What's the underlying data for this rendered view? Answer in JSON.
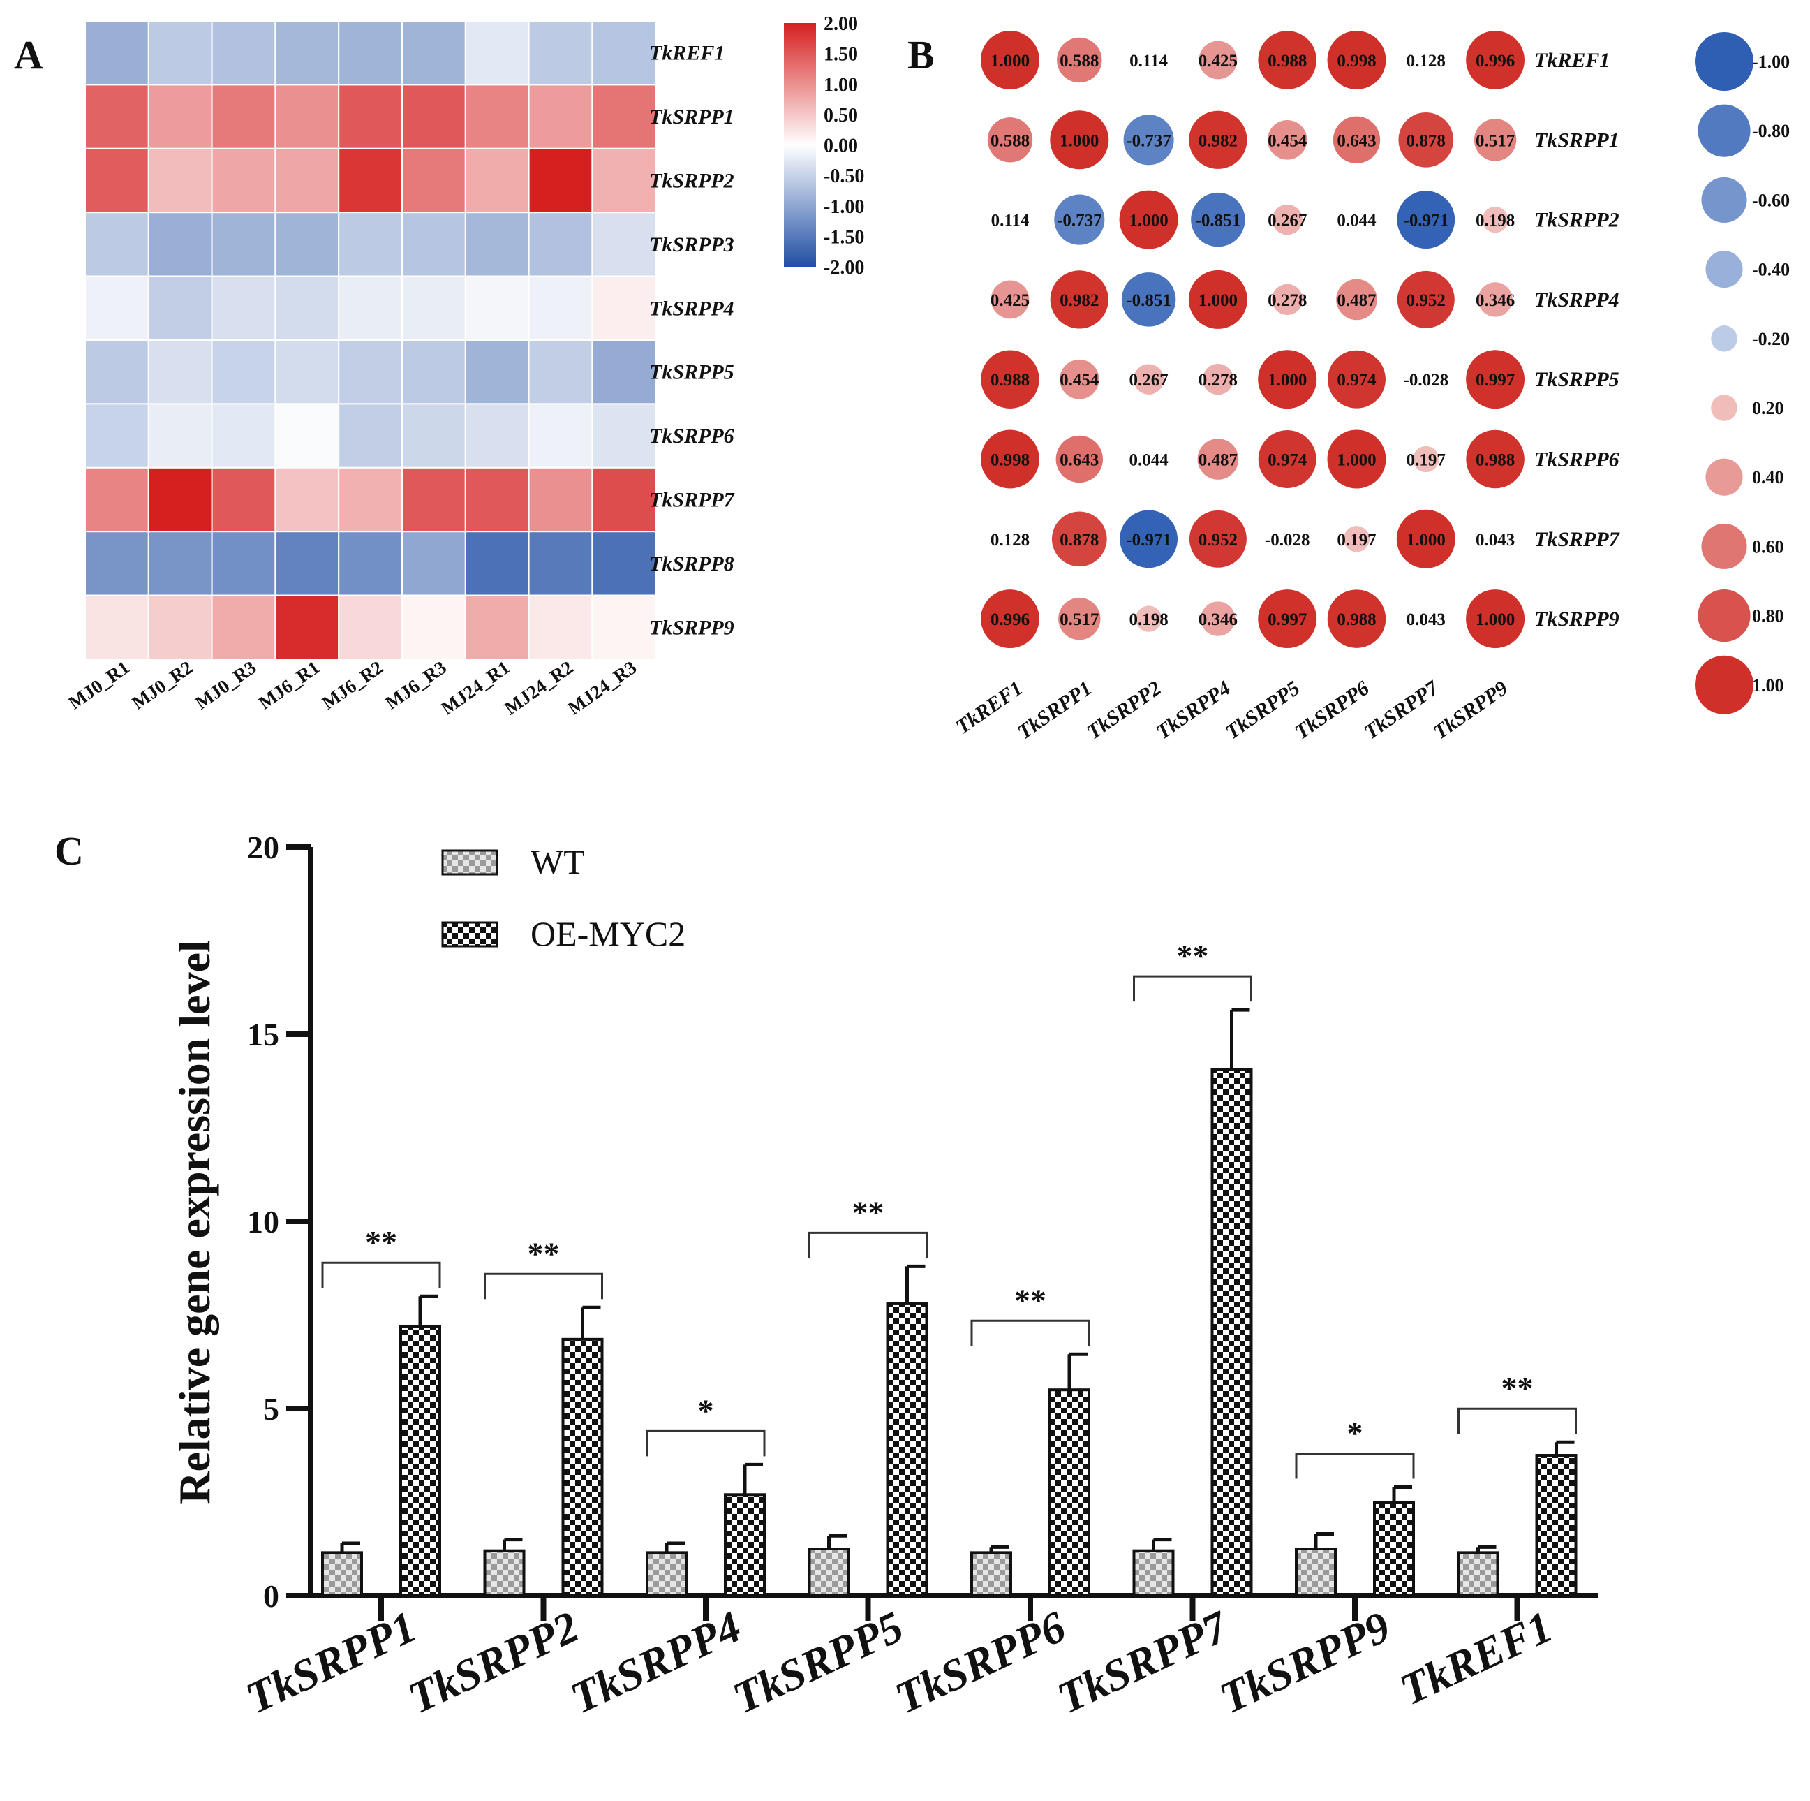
{
  "panel_labels": {
    "a": "A",
    "b": "B",
    "c": "C"
  },
  "chart_data": [
    {
      "type": "heatmap",
      "panel": "A",
      "title": "",
      "rows": [
        "TkREF1",
        "TkSRPP1",
        "TkSRPP2",
        "TkSRPP3",
        "TkSRPP4",
        "TkSRPP5",
        "TkSRPP6",
        "TkSRPP7",
        "TkSRPP8",
        "TkSRPP9"
      ],
      "columns": [
        "MJ0_R1",
        "MJ0_R2",
        "MJ0_R3",
        "MJ6_R1",
        "MJ6_R2",
        "MJ6_R3",
        "MJ24_R1",
        "MJ24_R2",
        "MJ24_R3"
      ],
      "values": [
        [
          -0.9,
          -0.6,
          -0.7,
          -0.8,
          -0.85,
          -0.85,
          -0.25,
          -0.6,
          -0.65
        ],
        [
          1.4,
          0.9,
          1.2,
          1.0,
          1.5,
          1.5,
          1.1,
          0.9,
          1.25
        ],
        [
          1.45,
          0.6,
          0.8,
          0.8,
          1.8,
          1.2,
          0.75,
          2.0,
          0.7
        ],
        [
          -0.6,
          -0.9,
          -0.85,
          -0.85,
          -0.6,
          -0.65,
          -0.8,
          -0.7,
          -0.35
        ],
        [
          -0.15,
          -0.55,
          -0.35,
          -0.4,
          -0.2,
          -0.2,
          -0.1,
          -0.15,
          0.15
        ],
        [
          -0.6,
          -0.35,
          -0.5,
          -0.4,
          -0.55,
          -0.6,
          -0.85,
          -0.55,
          -0.95
        ],
        [
          -0.5,
          -0.2,
          -0.25,
          -0.05,
          -0.55,
          -0.45,
          -0.35,
          -0.15,
          -0.3
        ],
        [
          1.1,
          2.0,
          1.5,
          0.55,
          0.7,
          1.5,
          1.5,
          1.0,
          1.6
        ],
        [
          -1.2,
          -1.2,
          -1.25,
          -1.4,
          -1.25,
          -1.0,
          -1.6,
          -1.5,
          -1.6
        ],
        [
          0.25,
          0.45,
          0.75,
          1.9,
          0.35,
          0.1,
          0.75,
          0.2,
          0.1
        ]
      ],
      "color_scale": {
        "min": -2.0,
        "max": 2.0,
        "ticks": [
          "2.00",
          "1.50",
          "1.00",
          "0.50",
          "0.00",
          "-0.50",
          "-1.00",
          "-1.50",
          "-2.00"
        ],
        "low_color": "#1f4ea3",
        "mid_color": "#ffffff",
        "high_color": "#d62020"
      }
    },
    {
      "type": "heatmap",
      "panel": "B",
      "title": "",
      "rows": [
        "TkREF1",
        "TkSRPP1",
        "TkSRPP2",
        "TkSRPP4",
        "TkSRPP5",
        "TkSRPP6",
        "TkSRPP7",
        "TkSRPP9"
      ],
      "columns": [
        "TkREF1",
        "TkSRPP1",
        "TkSRPP2",
        "TkSRPP4",
        "TkSRPP5",
        "TkSRPP6",
        "TkSRPP7",
        "TkSRPP9"
      ],
      "matrix": [
        [
          1.0,
          0.588,
          0.114,
          0.425,
          0.988,
          0.998,
          0.128,
          0.996
        ],
        [
          0.588,
          1.0,
          -0.737,
          0.982,
          0.454,
          0.643,
          0.878,
          0.517
        ],
        [
          0.114,
          -0.737,
          1.0,
          -0.851,
          0.267,
          0.044,
          -0.971,
          0.198
        ],
        [
          0.425,
          0.982,
          -0.851,
          1.0,
          0.278,
          0.487,
          0.952,
          0.346
        ],
        [
          0.988,
          0.454,
          0.267,
          0.278,
          1.0,
          0.974,
          -0.028,
          0.997
        ],
        [
          0.998,
          0.643,
          0.044,
          0.487,
          0.974,
          1.0,
          0.197,
          0.988
        ],
        [
          0.128,
          0.878,
          -0.971,
          0.952,
          -0.028,
          0.197,
          1.0,
          0.043
        ],
        [
          0.996,
          0.517,
          0.198,
          0.346,
          0.997,
          0.988,
          0.043,
          1.0
        ]
      ],
      "labels": [
        [
          "1.000",
          "0.588",
          "0.114",
          "0.425",
          "0.988",
          "0.998",
          "0.128",
          "0.996"
        ],
        [
          "0.588",
          "1.000",
          "-0.737",
          "0.982",
          "0.454",
          "0.643",
          "0.878",
          "0.517"
        ],
        [
          "0.114",
          "-0.737",
          "1.000",
          "-0.851",
          "0.267",
          "0.044",
          "-0.971",
          "0.198"
        ],
        [
          "0.425",
          "0.982",
          "-0.851",
          "1.000",
          "0.278",
          "0.487",
          "0.952",
          "0.346"
        ],
        [
          "0.988",
          "0.454",
          "0.267",
          "0.278",
          "1.000",
          "0.974",
          "-0.028",
          "0.997"
        ],
        [
          "0.998",
          "0.643",
          "0.044",
          "0.487",
          "0.974",
          "1.000",
          "0.197",
          "0.988"
        ],
        [
          "0.128",
          "0.878",
          "-0.971",
          "0.952",
          "-0.028",
          "0.197",
          "1.000",
          "0.043"
        ],
        [
          "0.996",
          "0.517",
          "0.198",
          "0.346",
          "0.997",
          "0.988",
          "0.043",
          "1.000"
        ]
      ],
      "size_legend": {
        "labels": [
          "-1.00",
          "-0.80",
          "-0.60",
          "-0.40",
          "-0.20",
          "0.20",
          "0.40",
          "0.60",
          "0.80",
          "1.00"
        ],
        "values": [
          -1.0,
          -0.8,
          -0.6,
          -0.4,
          -0.2,
          0.2,
          0.4,
          0.6,
          0.8,
          1.0
        ]
      },
      "neg_color": "#2f5fb3",
      "pos_color": "#d0302a"
    },
    {
      "type": "bar",
      "panel": "C",
      "title": "",
      "xlabel": "",
      "ylabel": "Relative gene expression level",
      "ylim": [
        0,
        20
      ],
      "yticks": [
        0,
        5,
        10,
        15,
        20
      ],
      "categories": [
        "TkSRPP1",
        "TkSRPP2",
        "TkSRPP4",
        "TkSRPP5",
        "TkSRPP6",
        "TkSRPP7",
        "TkSRPP9",
        "TkREF1"
      ],
      "series": [
        {
          "name": "WT",
          "values": [
            1.15,
            1.2,
            1.15,
            1.25,
            1.15,
            1.2,
            1.25,
            1.15
          ],
          "errors": [
            0.25,
            0.3,
            0.25,
            0.35,
            0.15,
            0.3,
            0.4,
            0.15
          ]
        },
        {
          "name": "OE-MYC2",
          "values": [
            7.2,
            6.85,
            2.7,
            7.8,
            5.5,
            14.05,
            2.5,
            3.75
          ],
          "errors": [
            0.8,
            0.85,
            0.8,
            1.0,
            0.95,
            1.6,
            0.4,
            0.35
          ]
        }
      ],
      "significance": [
        "**",
        "**",
        "*",
        "**",
        "**",
        "**",
        "*",
        "**"
      ],
      "legend": [
        "WT",
        "OE-MYC2"
      ]
    }
  ]
}
